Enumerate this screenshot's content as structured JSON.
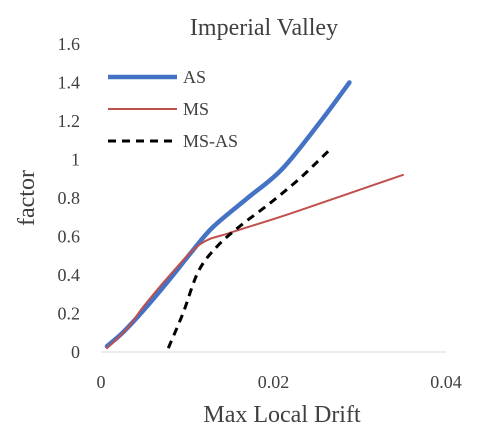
{
  "chart_data": {
    "type": "line",
    "title": "Imperial Valley",
    "xlabel": "Max Local Drift",
    "ylabel": "factor",
    "xlim": [
      0,
      0.04
    ],
    "ylim": [
      0,
      1.6
    ],
    "x_ticks": [
      0,
      0.02,
      0.04
    ],
    "x_tick_labels": [
      "0",
      "0.02",
      "0.04"
    ],
    "y_ticks": [
      0,
      0.2,
      0.4,
      0.6,
      0.8,
      1.0,
      1.2,
      1.4,
      1.6
    ],
    "y_tick_labels": [
      "0",
      "0.2",
      "0.4",
      "0.6",
      "0.8",
      "1",
      "1.2",
      "1.4",
      "1.6"
    ],
    "grid": false,
    "legend_position": "top-left",
    "series": [
      {
        "name": "AS",
        "color": "#4472c4",
        "style": "solid-thick",
        "points": [
          [
            0.0007,
            0.03
          ],
          [
            0.0025,
            0.1
          ],
          [
            0.005,
            0.22
          ],
          [
            0.008,
            0.38
          ],
          [
            0.0105,
            0.52
          ],
          [
            0.013,
            0.65
          ],
          [
            0.017,
            0.8
          ],
          [
            0.021,
            0.95
          ],
          [
            0.0255,
            1.2
          ],
          [
            0.0288,
            1.4
          ]
        ]
      },
      {
        "name": "MS",
        "color": "#c0504d",
        "style": "solid",
        "points": [
          [
            0.0007,
            0.02
          ],
          [
            0.003,
            0.12
          ],
          [
            0.005,
            0.24
          ],
          [
            0.008,
            0.4
          ],
          [
            0.0115,
            0.56
          ],
          [
            0.015,
            0.62
          ],
          [
            0.022,
            0.72
          ],
          [
            0.035,
            0.92
          ]
        ]
      },
      {
        "name": "MS-AS",
        "color": "#000000",
        "style": "dashed",
        "points": [
          [
            0.0078,
            0.02
          ],
          [
            0.0095,
            0.2
          ],
          [
            0.0113,
            0.42
          ],
          [
            0.0135,
            0.55
          ],
          [
            0.016,
            0.65
          ],
          [
            0.0195,
            0.77
          ],
          [
            0.023,
            0.9
          ],
          [
            0.0265,
            1.05
          ]
        ]
      }
    ]
  }
}
